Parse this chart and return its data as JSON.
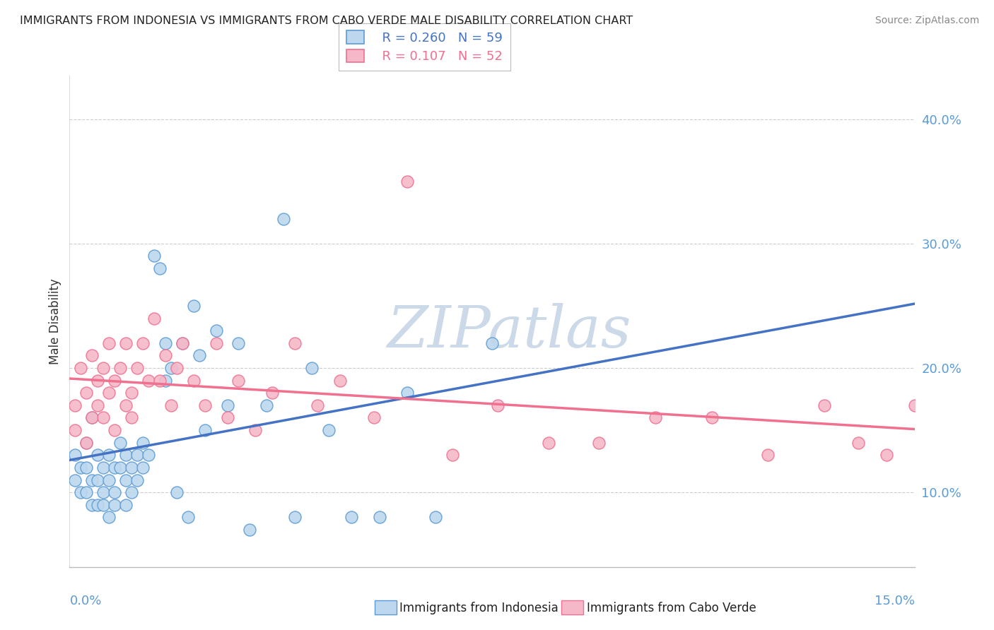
{
  "title": "IMMIGRANTS FROM INDONESIA VS IMMIGRANTS FROM CABO VERDE MALE DISABILITY CORRELATION CHART",
  "source": "Source: ZipAtlas.com",
  "ylabel": "Male Disability",
  "y_ticks": [
    0.1,
    0.2,
    0.3,
    0.4
  ],
  "y_tick_labels": [
    "10.0%",
    "20.0%",
    "30.0%",
    "40.0%"
  ],
  "x_range": [
    0.0,
    0.15
  ],
  "y_range": [
    0.04,
    0.435
  ],
  "legend_r1": "R = 0.260",
  "legend_n1": "N = 59",
  "legend_r2": "R = 0.107",
  "legend_n2": "N = 52",
  "color_indonesia_fill": "#bdd7ee",
  "color_cabo_verde_fill": "#f4b8c8",
  "color_indonesia_edge": "#5b9bd5",
  "color_cabo_verde_edge": "#f07090",
  "color_indonesia_line": "#4472c4",
  "color_cabo_verde_line": "#f07090",
  "color_tick_label": "#5b9bd5",
  "watermark_color": "#ccd9e8",
  "indonesia_x": [
    0.001,
    0.001,
    0.002,
    0.002,
    0.003,
    0.003,
    0.003,
    0.004,
    0.004,
    0.004,
    0.005,
    0.005,
    0.005,
    0.006,
    0.006,
    0.006,
    0.007,
    0.007,
    0.007,
    0.008,
    0.008,
    0.008,
    0.009,
    0.009,
    0.01,
    0.01,
    0.01,
    0.011,
    0.011,
    0.012,
    0.012,
    0.013,
    0.013,
    0.014,
    0.015,
    0.016,
    0.017,
    0.017,
    0.018,
    0.019,
    0.02,
    0.021,
    0.022,
    0.023,
    0.024,
    0.026,
    0.028,
    0.03,
    0.032,
    0.035,
    0.038,
    0.04,
    0.043,
    0.046,
    0.05,
    0.055,
    0.06,
    0.065,
    0.075
  ],
  "indonesia_y": [
    0.13,
    0.11,
    0.12,
    0.1,
    0.14,
    0.1,
    0.12,
    0.16,
    0.11,
    0.09,
    0.13,
    0.09,
    0.11,
    0.1,
    0.12,
    0.09,
    0.13,
    0.11,
    0.08,
    0.12,
    0.1,
    0.09,
    0.14,
    0.12,
    0.11,
    0.09,
    0.13,
    0.12,
    0.1,
    0.13,
    0.11,
    0.14,
    0.12,
    0.13,
    0.29,
    0.28,
    0.22,
    0.19,
    0.2,
    0.1,
    0.22,
    0.08,
    0.25,
    0.21,
    0.15,
    0.23,
    0.17,
    0.22,
    0.07,
    0.17,
    0.32,
    0.08,
    0.2,
    0.15,
    0.08,
    0.08,
    0.18,
    0.08,
    0.22
  ],
  "cabo_verde_x": [
    0.001,
    0.001,
    0.002,
    0.003,
    0.003,
    0.004,
    0.004,
    0.005,
    0.005,
    0.006,
    0.006,
    0.007,
    0.007,
    0.008,
    0.008,
    0.009,
    0.01,
    0.01,
    0.011,
    0.011,
    0.012,
    0.013,
    0.014,
    0.015,
    0.016,
    0.017,
    0.018,
    0.019,
    0.02,
    0.022,
    0.024,
    0.026,
    0.028,
    0.03,
    0.033,
    0.036,
    0.04,
    0.044,
    0.048,
    0.054,
    0.06,
    0.068,
    0.076,
    0.085,
    0.094,
    0.104,
    0.114,
    0.124,
    0.134,
    0.14,
    0.145,
    0.15
  ],
  "cabo_verde_y": [
    0.17,
    0.15,
    0.2,
    0.14,
    0.18,
    0.21,
    0.16,
    0.19,
    0.17,
    0.2,
    0.16,
    0.22,
    0.18,
    0.19,
    0.15,
    0.2,
    0.17,
    0.22,
    0.18,
    0.16,
    0.2,
    0.22,
    0.19,
    0.24,
    0.19,
    0.21,
    0.17,
    0.2,
    0.22,
    0.19,
    0.17,
    0.22,
    0.16,
    0.19,
    0.15,
    0.18,
    0.22,
    0.17,
    0.19,
    0.16,
    0.35,
    0.13,
    0.17,
    0.14,
    0.14,
    0.16,
    0.16,
    0.13,
    0.17,
    0.14,
    0.13,
    0.17
  ]
}
